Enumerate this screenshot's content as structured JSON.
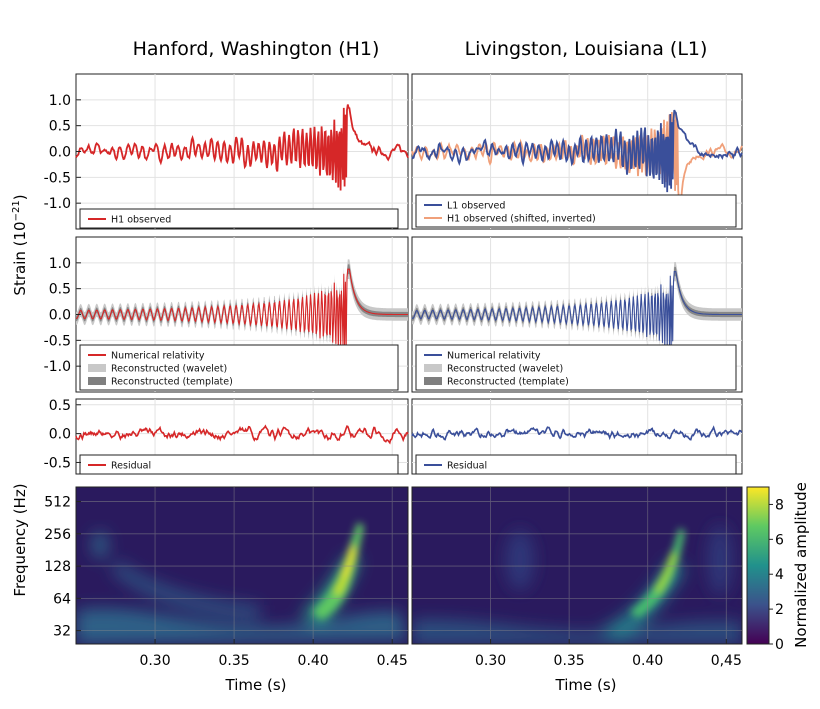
{
  "titles": {
    "left": "Hanford, Washington (H1)",
    "right": "Livingston, Louisiana (L1)"
  },
  "ylabel_strain": "Strain (10",
  "ylabel_strain_exp": "21",
  "ylabel_strain_end": ")",
  "ylabel_freq": "Frequency (Hz)",
  "xlabel": "Time (s)",
  "colorbar_label": "Normalized amplitude",
  "colors": {
    "h1": "#d62728",
    "l1": "#3a4f9a",
    "h1_shifted": "#f0a07a",
    "wavelet_band": "#c8c8c8",
    "template_band": "#7f7f7f"
  },
  "chart_data": [
    {
      "type": "line",
      "panel": "H1 observed",
      "xlim": [
        0.25,
        0.46
      ],
      "ylim": [
        -1.5,
        1.5
      ],
      "yticks": [
        "1.0",
        "0.5",
        "0.0",
        "-0.5",
        "-1.0"
      ],
      "ytick_values": [
        1.0,
        0.5,
        0.0,
        -0.5,
        -1.0
      ],
      "series": [
        {
          "name": "H1 observed",
          "color": "#d62728"
        }
      ],
      "legend": [
        "H1 observed"
      ]
    },
    {
      "type": "line",
      "panel": "L1 observed",
      "xlim": [
        0.25,
        0.46
      ],
      "ylim": [
        -1.5,
        1.5
      ],
      "series": [
        {
          "name": "L1 observed",
          "color": "#3a4f9a"
        },
        {
          "name": "H1 observed (shifted, inverted)",
          "color": "#f0a07a"
        }
      ],
      "legend": [
        "L1 observed",
        "H1 observed (shifted, inverted)"
      ]
    },
    {
      "type": "line",
      "panel": "H1 numerical relativity",
      "xlim": [
        0.25,
        0.46
      ],
      "ylim": [
        -1.5,
        1.5
      ],
      "yticks": [
        "1.0",
        "0.5",
        "0.0",
        "-0.5",
        "-1.0"
      ],
      "ytick_values": [
        1.0,
        0.5,
        0.0,
        -0.5,
        -1.0
      ],
      "series": [
        {
          "name": "Numerical relativity",
          "color": "#d62728"
        },
        {
          "name": "Reconstructed (wavelet)",
          "color": "#c8c8c8"
        },
        {
          "name": "Reconstructed (template)",
          "color": "#7f7f7f"
        }
      ],
      "legend": [
        "Numerical relativity",
        "Reconstructed (wavelet)",
        "Reconstructed (template)"
      ]
    },
    {
      "type": "line",
      "panel": "L1 numerical relativity",
      "xlim": [
        0.25,
        0.46
      ],
      "ylim": [
        -1.5,
        1.5
      ],
      "series": [
        {
          "name": "Numerical relativity",
          "color": "#3a4f9a"
        },
        {
          "name": "Reconstructed (wavelet)",
          "color": "#c8c8c8"
        },
        {
          "name": "Reconstructed (template)",
          "color": "#7f7f7f"
        }
      ],
      "legend": [
        "Numerical relativity",
        "Reconstructed (wavelet)",
        "Reconstructed (template)"
      ]
    },
    {
      "type": "line",
      "panel": "H1 residual",
      "xlim": [
        0.25,
        0.46
      ],
      "ylim": [
        -0.7,
        0.6
      ],
      "yticks": [
        "0.5",
        "0.0",
        "-0.5"
      ],
      "ytick_values": [
        0.5,
        0.0,
        -0.5
      ],
      "series": [
        {
          "name": "Residual",
          "color": "#d62728"
        }
      ],
      "legend": [
        "Residual"
      ]
    },
    {
      "type": "line",
      "panel": "L1 residual",
      "xlim": [
        0.25,
        0.46
      ],
      "ylim": [
        -0.7,
        0.6
      ],
      "series": [
        {
          "name": "Residual",
          "color": "#3a4f9a"
        }
      ],
      "legend": [
        "Residual"
      ]
    },
    {
      "type": "heatmap",
      "panel": "H1 spectrogram",
      "xlim": [
        0.25,
        0.46
      ],
      "yticks": [
        "512",
        "256",
        "128",
        "64",
        "32"
      ],
      "ytick_values": [
        512,
        256,
        128,
        64,
        32
      ],
      "xticks_left": [
        "0.30",
        "0.35",
        "0.40",
        "0.45"
      ],
      "chirp": {
        "t_start": 0.33,
        "t_peak": 0.423,
        "f_start": 40,
        "f_peak": 250
      }
    },
    {
      "type": "heatmap",
      "panel": "L1 spectrogram",
      "xlim": [
        0.25,
        0.46
      ],
      "xticks_right": [
        "0.30",
        "0.35",
        "0.40",
        "0,45"
      ],
      "chirp": {
        "t_start": 0.33,
        "t_peak": 0.416,
        "f_start": 40,
        "f_peak": 220
      },
      "colorbar": {
        "range": [
          0,
          9
        ],
        "ticks": [
          "8",
          "6",
          "4",
          "2",
          "0"
        ],
        "tick_values": [
          8,
          6,
          4,
          2,
          0
        ]
      }
    }
  ]
}
